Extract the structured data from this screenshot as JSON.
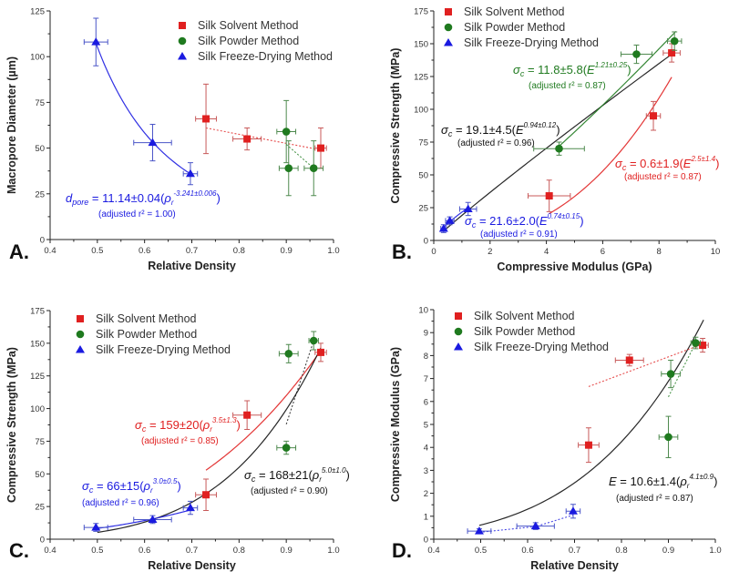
{
  "legend": [
    "Silk Solvent Method",
    "Silk Powder Method",
    "Silk Freeze-Drying Method"
  ],
  "colors": {
    "solvent": "#e02020",
    "powder": "#1f7a1f",
    "freeze": "#1a1ae0",
    "solvent_err": "#c85a5a",
    "powder_err": "#4f8a4f",
    "freeze_err": "#4a55c8",
    "black": "#111111"
  },
  "chart_data": [
    {
      "type": "scatter",
      "panel_label": "A.",
      "xlabel": "Relative Density",
      "ylabel": "Macropore Diameter (µm)",
      "xlim": [
        0.4,
        1.0
      ],
      "ylim": [
        0,
        125
      ],
      "xticks": [
        "0.4",
        "0.5",
        "0.6",
        "0.7",
        "0.8",
        "0.9",
        "1.0"
      ],
      "yticks": [
        "0",
        "25",
        "50",
        "75",
        "100",
        "125"
      ],
      "legend_position": "top-right",
      "series": [
        {
          "name": "Silk Solvent Method",
          "marker": "square",
          "points": [
            {
              "x": 0.73,
              "y": 66,
              "xerr": 0.022,
              "yerr": 19
            },
            {
              "x": 0.817,
              "y": 55,
              "xerr": 0.03,
              "yerr": 6
            },
            {
              "x": 0.973,
              "y": 50,
              "xerr": 0.012,
              "yerr": 11
            }
          ]
        },
        {
          "name": "Silk Powder Method",
          "marker": "circle",
          "points": [
            {
              "x": 0.9,
              "y": 59,
              "xerr": 0.02,
              "yerr": 17
            },
            {
              "x": 0.905,
              "y": 39,
              "xerr": 0.02,
              "yerr": 15
            },
            {
              "x": 0.958,
              "y": 39,
              "xerr": 0.02,
              "yerr": 15
            }
          ]
        },
        {
          "name": "Silk Freeze-Drying Method",
          "marker": "triangle",
          "points": [
            {
              "x": 0.497,
              "y": 108,
              "xerr": 0.025,
              "yerr": 13
            },
            {
              "x": 0.617,
              "y": 53,
              "xerr": 0.04,
              "yerr": 10
            },
            {
              "x": 0.697,
              "y": 36,
              "xerr": 0.015,
              "yerr": 6
            }
          ]
        }
      ],
      "fits": [
        {
          "kind": "power",
          "a": 11.14,
          "b": -3.241,
          "from": 0.497,
          "to": 0.697,
          "color": "freeze",
          "dashed": false
        },
        {
          "kind": "line",
          "points": [
            [
              0.73,
              61
            ],
            [
              0.973,
              49
            ]
          ],
          "color": "solvent",
          "dashed": true
        },
        {
          "kind": "line",
          "points": [
            [
              0.9,
              52
            ],
            [
              0.958,
              39
            ]
          ],
          "color": "powder",
          "dashed": true
        }
      ],
      "equations": [
        {
          "symbol": "d",
          "symbol_sub": "pore",
          "body": " = 11.14±0.04(",
          "base": "ρ",
          "base_sub": "r",
          "exponent": "-3.241±0.006",
          "close": ")",
          "r2": "(adjusted r² = 1.00)",
          "color": "freeze"
        }
      ]
    },
    {
      "type": "scatter",
      "panel_label": "B.",
      "xlabel": "Compressive Modulus (GPa)",
      "ylabel": "Compressive Strength (MPa)",
      "xlim": [
        0,
        10
      ],
      "ylim": [
        0,
        175
      ],
      "xticks": [
        "0",
        "2",
        "4",
        "6",
        "8",
        "10"
      ],
      "yticks": [
        "0",
        "25",
        "50",
        "75",
        "100",
        "125",
        "150",
        "175"
      ],
      "legend_position": "top-left",
      "series": [
        {
          "name": "Silk Solvent Method",
          "marker": "square",
          "points": [
            {
              "x": 4.1,
              "y": 34,
              "xerr": 0.75,
              "yerr": 12
            },
            {
              "x": 7.8,
              "y": 95,
              "xerr": 0.25,
              "yerr": 11
            },
            {
              "x": 8.45,
              "y": 143,
              "xerr": 0.3,
              "yerr": 7
            }
          ]
        },
        {
          "name": "Silk Powder Method",
          "marker": "circle",
          "points": [
            {
              "x": 4.45,
              "y": 70,
              "xerr": 0.9,
              "yerr": 5
            },
            {
              "x": 7.2,
              "y": 142,
              "xerr": 0.55,
              "yerr": 7
            },
            {
              "x": 8.55,
              "y": 152,
              "xerr": 0.25,
              "yerr": 7
            }
          ]
        },
        {
          "name": "Silk Freeze-Drying Method",
          "marker": "triangle",
          "points": [
            {
              "x": 0.35,
              "y": 9,
              "xerr": 0.1,
              "yerr": 3
            },
            {
              "x": 0.57,
              "y": 15,
              "xerr": 0.15,
              "yerr": 3
            },
            {
              "x": 1.22,
              "y": 24,
              "xerr": 0.3,
              "yerr": 5
            }
          ]
        }
      ],
      "fits": [
        {
          "kind": "power",
          "a": 19.1,
          "b": 0.94,
          "from": 0.35,
          "to": 8.5,
          "color": "black",
          "dashed": false
        },
        {
          "kind": "power",
          "a": 0.6,
          "b": 2.5,
          "from": 4.1,
          "to": 8.45,
          "color": "solvent",
          "dashed": false
        },
        {
          "kind": "power",
          "a": 11.8,
          "b": 1.21,
          "from": 4.45,
          "to": 8.6,
          "color": "powder",
          "dashed": false
        },
        {
          "kind": "power",
          "a": 21.6,
          "b": 0.74,
          "from": 0.35,
          "to": 1.22,
          "color": "freeze",
          "dashed": false
        }
      ],
      "equations": [
        {
          "symbol": "σ",
          "symbol_sub": "c",
          "body": " = 11.8±5.8(",
          "base": "E",
          "base_sub": "",
          "exponent": "1.21±0.25",
          "close": ")",
          "r2": "(adjusted r² = 0.87)",
          "color": "powder"
        },
        {
          "symbol": "σ",
          "symbol_sub": "c",
          "body": " = 19.1±4.5(",
          "base": "E",
          "base_sub": "",
          "exponent": "0.94±0.12",
          "close": ")",
          "r2": "(adjusted r² = 0.96)",
          "color": "black"
        },
        {
          "symbol": "σ",
          "symbol_sub": "c",
          "body": " = 0.6±1.9(",
          "base": "E",
          "base_sub": "",
          "exponent": "2.5±1.4",
          "close": ")",
          "r2": "(adjusted r² = 0.87)",
          "color": "solvent"
        },
        {
          "symbol": "σ",
          "symbol_sub": "c",
          "body": " = 21.6±2.0(",
          "base": "E",
          "base_sub": "",
          "exponent": "0.74±0.15",
          "close": ")",
          "r2": "(adjusted r² = 0.91)",
          "color": "freeze"
        }
      ]
    },
    {
      "type": "scatter",
      "panel_label": "C.",
      "xlabel": "Relative Density",
      "ylabel": "Compressive Strength (MPa)",
      "xlim": [
        0.4,
        1.0
      ],
      "ylim": [
        0,
        175
      ],
      "xticks": [
        "0.4",
        "0.5",
        "0.6",
        "0.7",
        "0.8",
        "0.9",
        "1.0"
      ],
      "yticks": [
        "0",
        "25",
        "50",
        "75",
        "100",
        "125",
        "150",
        "175"
      ],
      "legend_position": "top-left",
      "series": [
        {
          "name": "Silk Solvent Method",
          "marker": "square",
          "points": [
            {
              "x": 0.73,
              "y": 34,
              "xerr": 0.022,
              "yerr": 12
            },
            {
              "x": 0.817,
              "y": 95,
              "xerr": 0.03,
              "yerr": 11
            },
            {
              "x": 0.973,
              "y": 143,
              "xerr": 0.012,
              "yerr": 7
            }
          ]
        },
        {
          "name": "Silk Powder Method",
          "marker": "circle",
          "points": [
            {
              "x": 0.9,
              "y": 70,
              "xerr": 0.02,
              "yerr": 5
            },
            {
              "x": 0.905,
              "y": 142,
              "xerr": 0.02,
              "yerr": 7
            },
            {
              "x": 0.958,
              "y": 152,
              "xerr": 0.01,
              "yerr": 7
            }
          ]
        },
        {
          "name": "Silk Freeze-Drying Method",
          "marker": "triangle",
          "points": [
            {
              "x": 0.497,
              "y": 9,
              "xerr": 0.025,
              "yerr": 3
            },
            {
              "x": 0.617,
              "y": 15,
              "xerr": 0.04,
              "yerr": 3
            },
            {
              "x": 0.697,
              "y": 24,
              "xerr": 0.015,
              "yerr": 5
            }
          ]
        }
      ],
      "fits": [
        {
          "kind": "power",
          "a": 159,
          "b": 3.5,
          "from": 0.73,
          "to": 0.973,
          "color": "solvent",
          "dashed": false
        },
        {
          "kind": "power",
          "a": 168,
          "b": 5.0,
          "from": 0.5,
          "to": 0.973,
          "color": "black",
          "dashed": false
        },
        {
          "kind": "power",
          "a": 66,
          "b": 3.0,
          "from": 0.497,
          "to": 0.697,
          "color": "freeze",
          "dashed": false
        },
        {
          "kind": "line",
          "points": [
            [
              0.9,
              88
            ],
            [
              0.958,
              152
            ]
          ],
          "color": "black",
          "dashed": true
        }
      ],
      "equations": [
        {
          "symbol": "σ",
          "symbol_sub": "c",
          "body": " = 159±20(",
          "base": "ρ",
          "base_sub": "r",
          "exponent": "3.5±1.3",
          "close": ")",
          "r2": "(adjusted r² = 0.85)",
          "color": "solvent"
        },
        {
          "symbol": "σ",
          "symbol_sub": "c",
          "body": " = 168±21(",
          "base": "ρ",
          "base_sub": "r",
          "exponent": "5.0±1.0",
          "close": ")",
          "r2": "(adjusted r² = 0.90)",
          "color": "black"
        },
        {
          "symbol": "σ",
          "symbol_sub": "c",
          "body": " = 66±15(",
          "base": "ρ",
          "base_sub": "r",
          "exponent": "3.0±0.5",
          "close": ")",
          "r2": "(adjusted r² = 0.96)",
          "color": "freeze"
        }
      ]
    },
    {
      "type": "scatter",
      "panel_label": "D.",
      "xlabel": "Relative Density",
      "ylabel": "Compressive Modulus (GPa)",
      "xlim": [
        0.4,
        1.0
      ],
      "ylim": [
        0,
        10
      ],
      "xticks": [
        "0.4",
        "0.5",
        "0.6",
        "0.7",
        "0.8",
        "0.9",
        "1.0"
      ],
      "yticks": [
        "0",
        "1",
        "2",
        "3",
        "4",
        "5",
        "6",
        "7",
        "8",
        "9",
        "10"
      ],
      "legend_position": "top-left",
      "series": [
        {
          "name": "Silk Solvent Method",
          "marker": "square",
          "points": [
            {
              "x": 0.73,
              "y": 4.1,
              "xerr": 0.022,
              "yerr": 0.75
            },
            {
              "x": 0.817,
              "y": 7.8,
              "xerr": 0.03,
              "yerr": 0.25
            },
            {
              "x": 0.973,
              "y": 8.45,
              "xerr": 0.012,
              "yerr": 0.3
            }
          ]
        },
        {
          "name": "Silk Powder Method",
          "marker": "circle",
          "points": [
            {
              "x": 0.9,
              "y": 4.45,
              "xerr": 0.02,
              "yerr": 0.9
            },
            {
              "x": 0.905,
              "y": 7.2,
              "xerr": 0.02,
              "yerr": 0.6
            },
            {
              "x": 0.958,
              "y": 8.55,
              "xerr": 0.01,
              "yerr": 0.25
            }
          ]
        },
        {
          "name": "Silk Freeze-Drying Method",
          "marker": "triangle",
          "points": [
            {
              "x": 0.497,
              "y": 0.35,
              "xerr": 0.025,
              "yerr": 0.1
            },
            {
              "x": 0.617,
              "y": 0.57,
              "xerr": 0.04,
              "yerr": 0.15
            },
            {
              "x": 0.697,
              "y": 1.22,
              "xerr": 0.015,
              "yerr": 0.3
            }
          ]
        }
      ],
      "fits": [
        {
          "kind": "power",
          "a": 10.6,
          "b": 4.1,
          "from": 0.497,
          "to": 0.975,
          "color": "black",
          "dashed": false
        },
        {
          "kind": "line",
          "points": [
            [
              0.73,
              6.65
            ],
            [
              0.973,
              8.5
            ]
          ],
          "color": "solvent",
          "dashed": true
        },
        {
          "kind": "line",
          "points": [
            [
              0.9,
              6.2
            ],
            [
              0.958,
              8.55
            ]
          ],
          "color": "powder",
          "dashed": true
        },
        {
          "kind": "line",
          "points": [
            [
              0.497,
              0.3
            ],
            [
              0.617,
              0.55
            ],
            [
              0.697,
              1.05
            ]
          ],
          "color": "freeze",
          "dashed": true
        }
      ],
      "equations": [
        {
          "symbol": "E",
          "symbol_sub": "",
          "body": " = 10.6±1.4(",
          "base": "ρ",
          "base_sub": "r",
          "exponent": "4.1±0.9",
          "close": ")",
          "r2": "(adjusted r² = 0.87)",
          "color": "black"
        }
      ]
    }
  ]
}
